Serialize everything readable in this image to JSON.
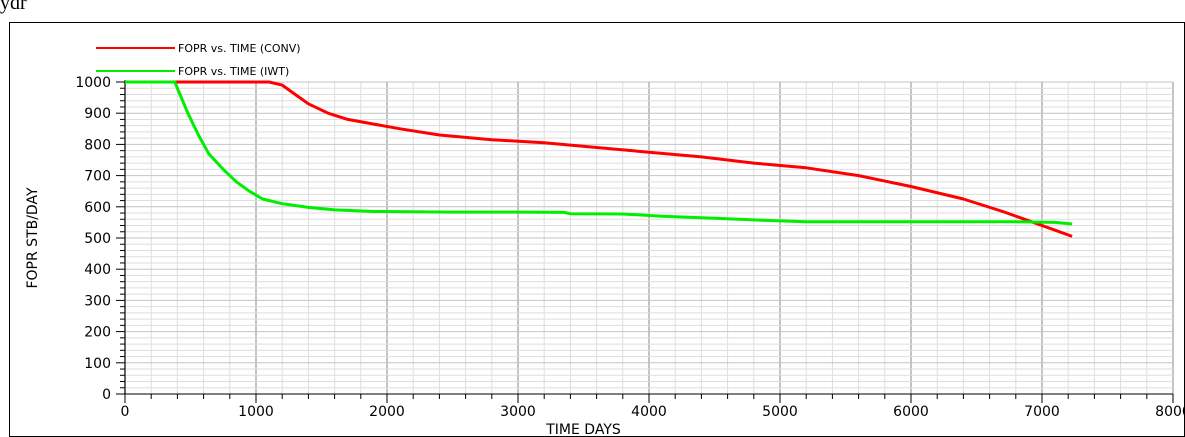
{
  "caption": "ydr",
  "chart_data": {
    "type": "line",
    "title": "",
    "xlabel": "TIME   DAYS",
    "ylabel": "FOPR   STB/DAY",
    "xlim": [
      0,
      8000
    ],
    "ylim": [
      0,
      1000
    ],
    "x_ticks": [
      0,
      1000,
      2000,
      3000,
      4000,
      5000,
      6000,
      7000,
      8000
    ],
    "y_ticks": [
      0,
      100,
      200,
      300,
      400,
      500,
      600,
      700,
      800,
      900,
      1000
    ],
    "grid": true,
    "legend_position": "top-left",
    "series": [
      {
        "name": "FOPR vs. TIME (CONV)",
        "color": "#ff0000",
        "points": [
          [
            0,
            1000
          ],
          [
            1100,
            1000
          ],
          [
            1200,
            990
          ],
          [
            1300,
            960
          ],
          [
            1400,
            930
          ],
          [
            1550,
            900
          ],
          [
            1700,
            880
          ],
          [
            1900,
            865
          ],
          [
            2100,
            850
          ],
          [
            2400,
            830
          ],
          [
            2800,
            815
          ],
          [
            3200,
            805
          ],
          [
            3600,
            790
          ],
          [
            4000,
            775
          ],
          [
            4400,
            760
          ],
          [
            4800,
            740
          ],
          [
            5200,
            725
          ],
          [
            5600,
            700
          ],
          [
            6000,
            665
          ],
          [
            6400,
            625
          ],
          [
            6700,
            585
          ],
          [
            6900,
            555
          ],
          [
            7100,
            525
          ],
          [
            7230,
            505
          ]
        ]
      },
      {
        "name": "FOPR vs. TIME (IWT)",
        "color": "#00ee00",
        "points": [
          [
            0,
            1000
          ],
          [
            380,
            1000
          ],
          [
            420,
            960
          ],
          [
            480,
            900
          ],
          [
            560,
            830
          ],
          [
            640,
            770
          ],
          [
            750,
            720
          ],
          [
            850,
            680
          ],
          [
            950,
            650
          ],
          [
            1050,
            625
          ],
          [
            1200,
            610
          ],
          [
            1400,
            598
          ],
          [
            1600,
            590
          ],
          [
            1900,
            585
          ],
          [
            2500,
            583
          ],
          [
            3000,
            583
          ],
          [
            3350,
            582
          ],
          [
            3400,
            578
          ],
          [
            3800,
            577
          ],
          [
            4100,
            570
          ],
          [
            4500,
            563
          ],
          [
            4800,
            558
          ],
          [
            5200,
            552
          ],
          [
            6000,
            552
          ],
          [
            6800,
            552
          ],
          [
            7100,
            550
          ],
          [
            7230,
            545
          ]
        ]
      }
    ]
  }
}
